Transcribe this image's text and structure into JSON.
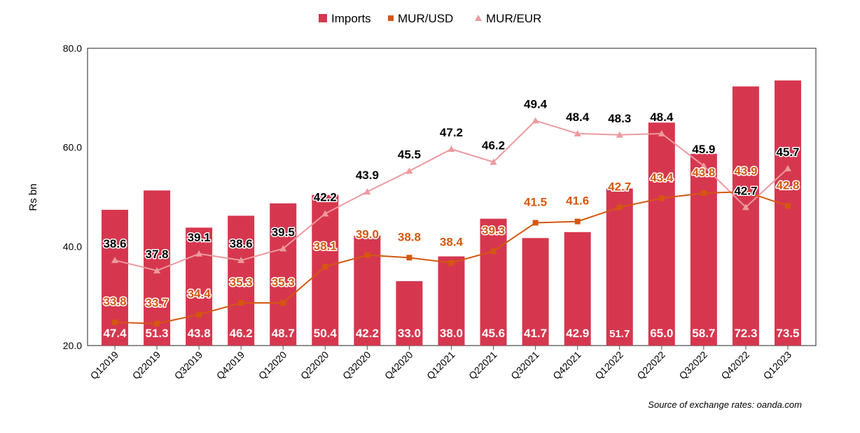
{
  "chart_data": {
    "type": "bar",
    "title": "",
    "xlabel": "",
    "ylabel": "Rs bn",
    "ylim": [
      20,
      80
    ],
    "yticks": [
      "20.0",
      "40.0",
      "60.0",
      "80.0"
    ],
    "y2lim": [
      32,
      55
    ],
    "y2_hidden": true,
    "grid": false,
    "legend_position": "top",
    "categories": [
      "Q12019",
      "Q22019",
      "Q32019",
      "Q42019",
      "Q12020",
      "Q22020",
      "Q32020",
      "Q42020",
      "Q12021",
      "Q22021",
      "Q32021",
      "Q42021",
      "Q12022",
      "Q22022",
      "Q32022",
      "Q42022",
      "Q12023"
    ],
    "series": [
      {
        "name": "Imports",
        "type": "bar",
        "axis": "left",
        "color": "#d6374f",
        "values": [
          47.4,
          51.3,
          43.8,
          46.2,
          48.7,
          50.4,
          42.2,
          33.0,
          38.0,
          45.6,
          41.7,
          42.9,
          51.7,
          65.0,
          58.7,
          72.3,
          73.5
        ]
      },
      {
        "name": "MUR/USD",
        "type": "line",
        "axis": "right",
        "color": "#d4570f",
        "marker": "square",
        "values": [
          33.8,
          33.7,
          34.4,
          35.3,
          35.3,
          38.1,
          39.0,
          38.8,
          38.4,
          39.3,
          41.5,
          41.6,
          42.7,
          43.4,
          43.8,
          43.9,
          42.8
        ]
      },
      {
        "name": "MUR/EUR",
        "type": "line",
        "axis": "right",
        "color": "#ec9a9e",
        "marker": "triangle",
        "values": [
          38.6,
          37.8,
          39.1,
          38.6,
          39.5,
          42.2,
          43.9,
          45.5,
          47.2,
          46.2,
          49.4,
          48.4,
          48.3,
          48.4,
          45.9,
          42.7,
          45.7
        ]
      }
    ],
    "annotation": "Source of exchange rates: oanda.com"
  }
}
